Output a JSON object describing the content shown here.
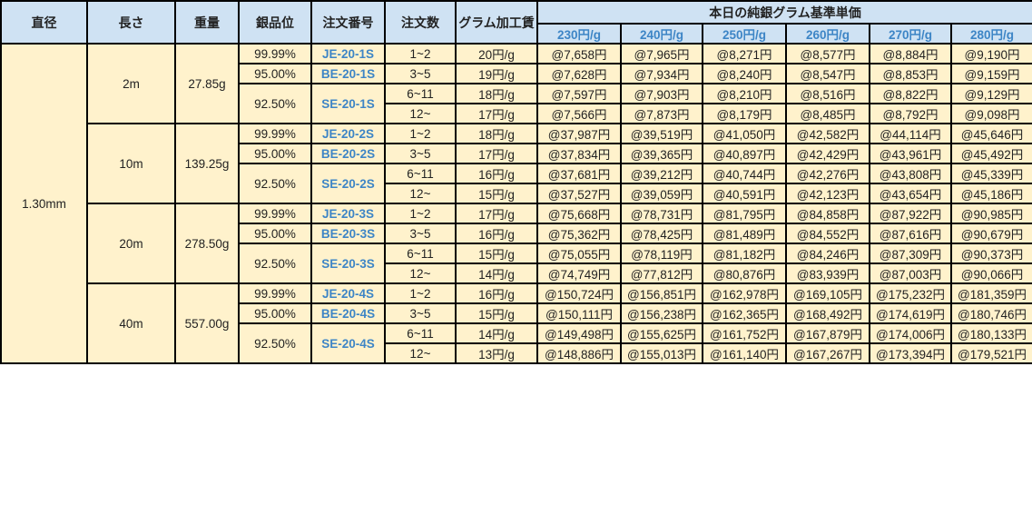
{
  "header": {
    "diameter": "直径",
    "length": "長さ",
    "weight": "重量",
    "purity": "銀品位",
    "order_number": "注文番号",
    "quantity": "注文数",
    "processing_fee": "グラム加工賃",
    "base_price_group": "本日の純銀グラム基準単価",
    "base_prices": [
      "230円/g",
      "240円/g",
      "250円/g",
      "260円/g",
      "270円/g",
      "280円/g"
    ]
  },
  "colors": {
    "header_bg": "#cfe2f3",
    "body_bg": "#fff2cc",
    "accent_text": "#3d85c6"
  },
  "diameter": "1.30mm",
  "groups": [
    {
      "length": "2m",
      "weight": "27.85g",
      "grades": [
        {
          "purity": "99.99%",
          "code": "JE-20-1S"
        },
        {
          "purity": "95.00%",
          "code": "BE-20-1S"
        },
        {
          "purity": "92.50%",
          "code": "SE-20-1S"
        }
      ],
      "rows": [
        {
          "qty": "1~2",
          "fee": "20円/g",
          "prices": [
            "@7,658円",
            "@7,965円",
            "@8,271円",
            "@8,577円",
            "@8,884円",
            "@9,190円"
          ]
        },
        {
          "qty": "3~5",
          "fee": "19円/g",
          "prices": [
            "@7,628円",
            "@7,934円",
            "@8,240円",
            "@8,547円",
            "@8,853円",
            "@9,159円"
          ]
        },
        {
          "qty": "6~11",
          "fee": "18円/g",
          "prices": [
            "@7,597円",
            "@7,903円",
            "@8,210円",
            "@8,516円",
            "@8,822円",
            "@9,129円"
          ]
        },
        {
          "qty": "12~",
          "fee": "17円/g",
          "prices": [
            "@7,566円",
            "@7,873円",
            "@8,179円",
            "@8,485円",
            "@8,792円",
            "@9,098円"
          ]
        }
      ]
    },
    {
      "length": "10m",
      "weight": "139.25g",
      "grades": [
        {
          "purity": "99.99%",
          "code": "JE-20-2S"
        },
        {
          "purity": "95.00%",
          "code": "BE-20-2S"
        },
        {
          "purity": "92.50%",
          "code": "SE-20-2S"
        }
      ],
      "rows": [
        {
          "qty": "1~2",
          "fee": "18円/g",
          "prices": [
            "@37,987円",
            "@39,519円",
            "@41,050円",
            "@42,582円",
            "@44,114円",
            "@45,646円"
          ]
        },
        {
          "qty": "3~5",
          "fee": "17円/g",
          "prices": [
            "@37,834円",
            "@39,365円",
            "@40,897円",
            "@42,429円",
            "@43,961円",
            "@45,492円"
          ]
        },
        {
          "qty": "6~11",
          "fee": "16円/g",
          "prices": [
            "@37,681円",
            "@39,212円",
            "@40,744円",
            "@42,276円",
            "@43,808円",
            "@45,339円"
          ]
        },
        {
          "qty": "12~",
          "fee": "15円/g",
          "prices": [
            "@37,527円",
            "@39,059円",
            "@40,591円",
            "@42,123円",
            "@43,654円",
            "@45,186円"
          ]
        }
      ]
    },
    {
      "length": "20m",
      "weight": "278.50g",
      "grades": [
        {
          "purity": "99.99%",
          "code": "JE-20-3S"
        },
        {
          "purity": "95.00%",
          "code": "BE-20-3S"
        },
        {
          "purity": "92.50%",
          "code": "SE-20-3S"
        }
      ],
      "rows": [
        {
          "qty": "1~2",
          "fee": "17円/g",
          "prices": [
            "@75,668円",
            "@78,731円",
            "@81,795円",
            "@84,858円",
            "@87,922円",
            "@90,985円"
          ]
        },
        {
          "qty": "3~5",
          "fee": "16円/g",
          "prices": [
            "@75,362円",
            "@78,425円",
            "@81,489円",
            "@84,552円",
            "@87,616円",
            "@90,679円"
          ]
        },
        {
          "qty": "6~11",
          "fee": "15円/g",
          "prices": [
            "@75,055円",
            "@78,119円",
            "@81,182円",
            "@84,246円",
            "@87,309円",
            "@90,373円"
          ]
        },
        {
          "qty": "12~",
          "fee": "14円/g",
          "prices": [
            "@74,749円",
            "@77,812円",
            "@80,876円",
            "@83,939円",
            "@87,003円",
            "@90,066円"
          ]
        }
      ]
    },
    {
      "length": "40m",
      "weight": "557.00g",
      "grades": [
        {
          "purity": "99.99%",
          "code": "JE-20-4S"
        },
        {
          "purity": "95.00%",
          "code": "BE-20-4S"
        },
        {
          "purity": "92.50%",
          "code": "SE-20-4S"
        }
      ],
      "rows": [
        {
          "qty": "1~2",
          "fee": "16円/g",
          "prices": [
            "@150,724円",
            "@156,851円",
            "@162,978円",
            "@169,105円",
            "@175,232円",
            "@181,359円"
          ]
        },
        {
          "qty": "3~5",
          "fee": "15円/g",
          "prices": [
            "@150,111円",
            "@156,238円",
            "@162,365円",
            "@168,492円",
            "@174,619円",
            "@180,746円"
          ]
        },
        {
          "qty": "6~11",
          "fee": "14円/g",
          "prices": [
            "@149,498円",
            "@155,625円",
            "@161,752円",
            "@167,879円",
            "@174,006円",
            "@180,133円"
          ]
        },
        {
          "qty": "12~",
          "fee": "13円/g",
          "prices": [
            "@148,886円",
            "@155,013円",
            "@161,140円",
            "@167,267円",
            "@173,394円",
            "@179,521円"
          ]
        }
      ]
    }
  ]
}
